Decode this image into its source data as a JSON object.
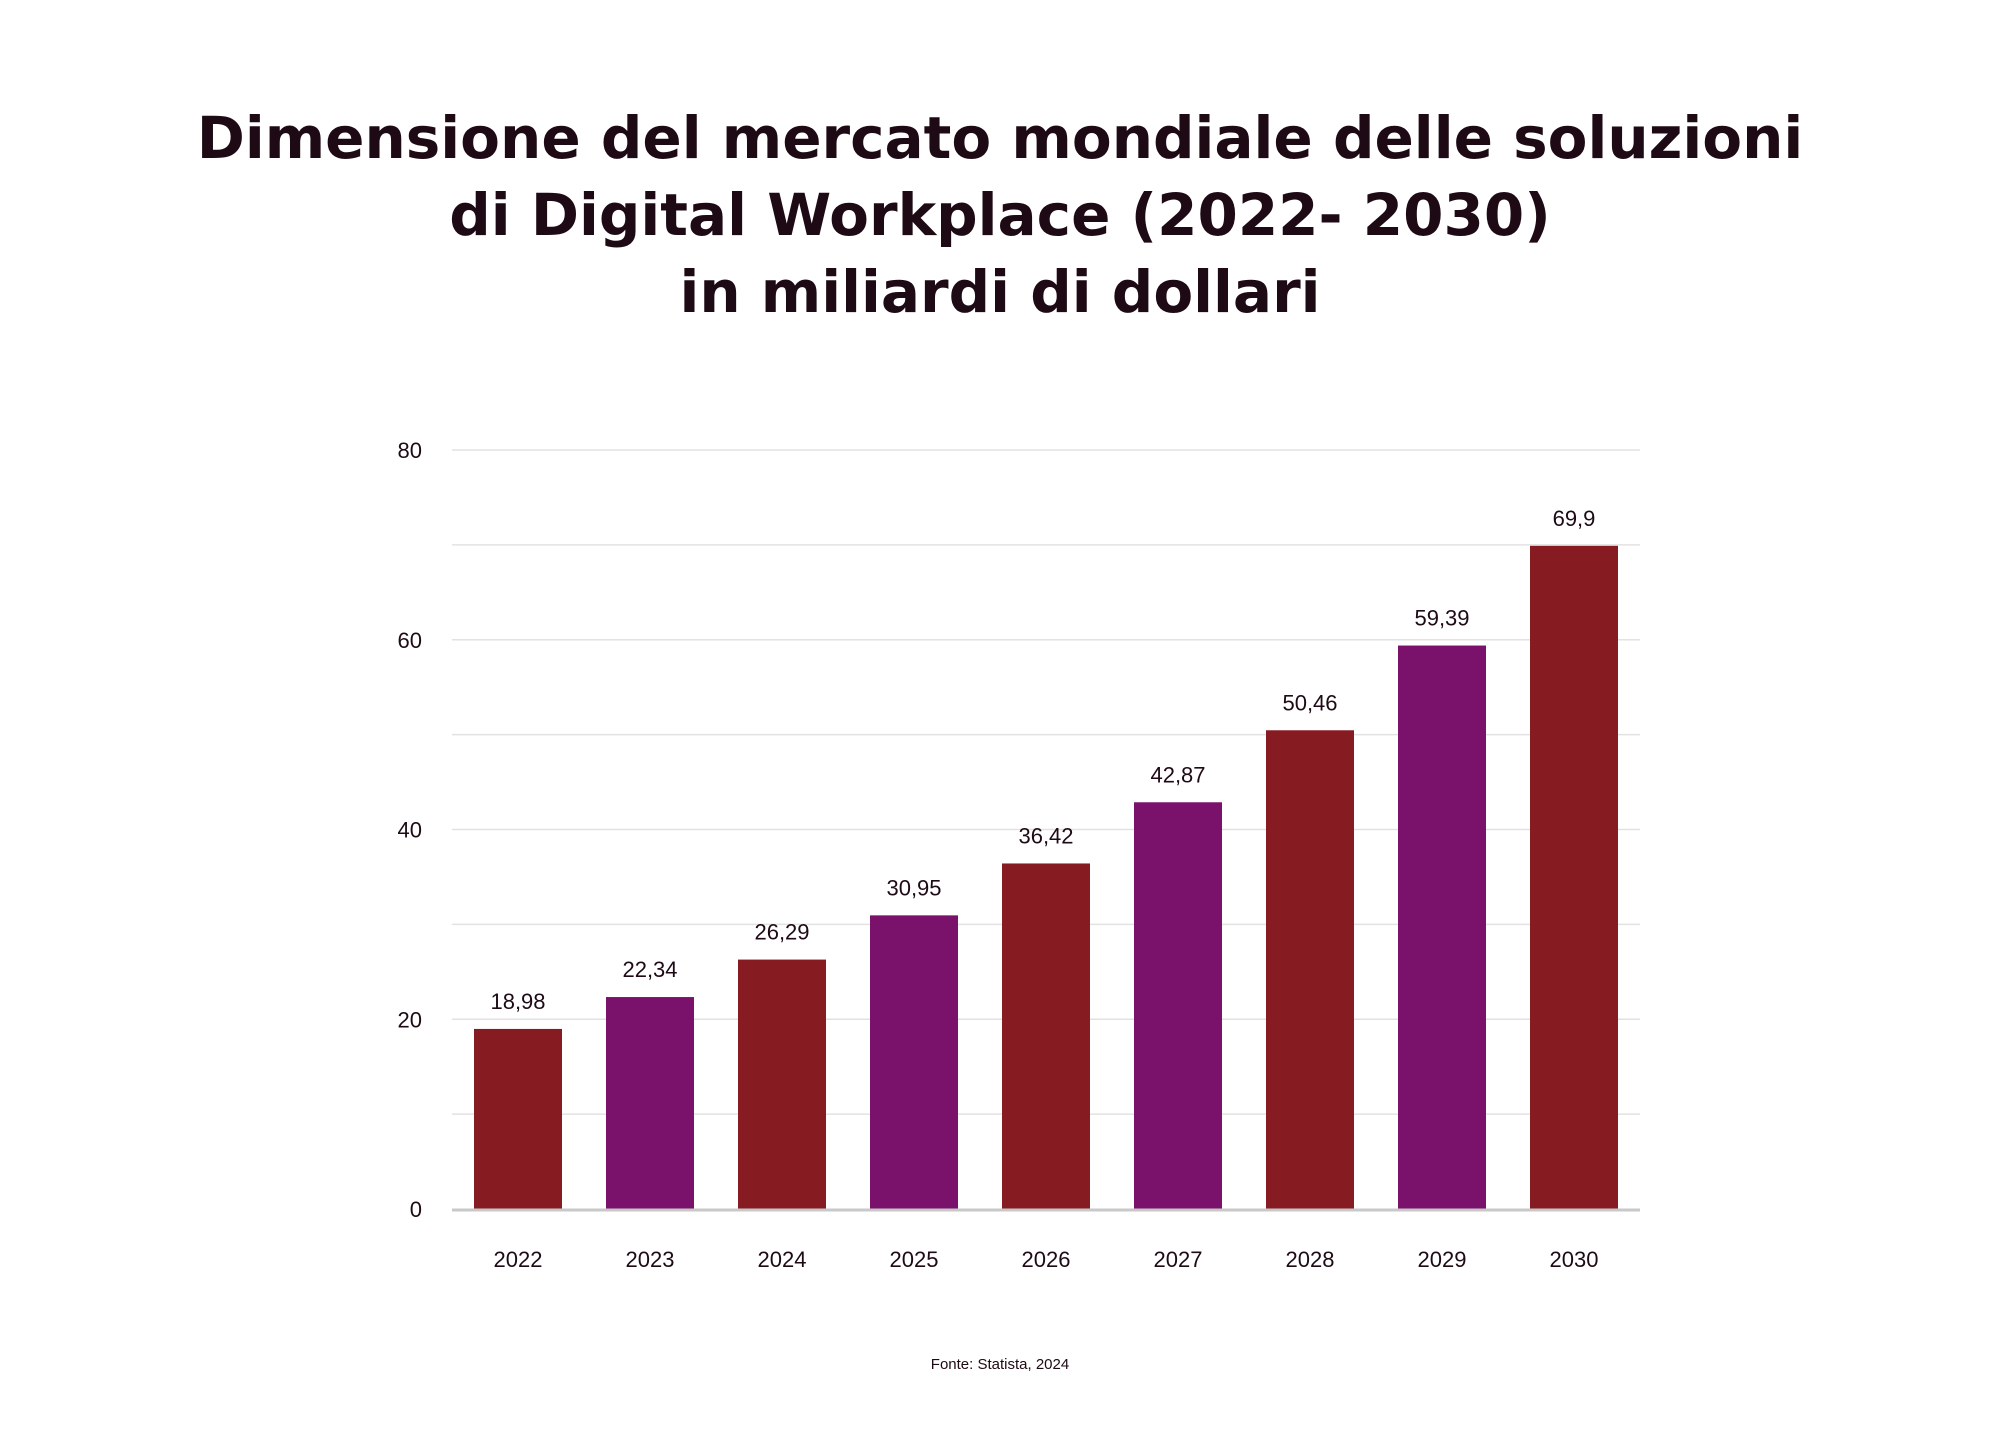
{
  "title_lines": [
    "Dimensione del mercato mondiale delle soluzioni",
    "di Digital Workplace (2022- 2030)",
    "in miliardi di dollari"
  ],
  "source": "Fonte: Statista, 2024",
  "colors": {
    "bar_odd": "#861b22",
    "bar_even": "#7a116a",
    "grid": "#e2e2e2",
    "axis": "#c8c8c8",
    "text": "#1e0a14"
  },
  "chart_data": {
    "type": "bar",
    "title": "Dimensione del mercato mondiale delle soluzioni di Digital Workplace (2022- 2030) in miliardi di dollari",
    "categories": [
      "2022",
      "2023",
      "2024",
      "2025",
      "2026",
      "2027",
      "2028",
      "2029",
      "2030"
    ],
    "values": [
      18.98,
      22.34,
      26.29,
      30.95,
      36.42,
      42.87,
      50.46,
      59.39,
      69.9
    ],
    "value_labels": [
      "18,98",
      "22,34",
      "26,29",
      "30,95",
      "36,42",
      "42,87",
      "50,46",
      "59,39",
      "69,9"
    ],
    "xlabel": "",
    "ylabel": "",
    "ylim": [
      0,
      80
    ],
    "yticks": [
      0,
      20,
      40,
      60,
      80
    ],
    "ytick_labels": [
      "0",
      "20",
      "40",
      "60",
      "80"
    ],
    "minor_gridlines": [
      10,
      30,
      50,
      70
    ],
    "grid": true,
    "legend": "none"
  }
}
